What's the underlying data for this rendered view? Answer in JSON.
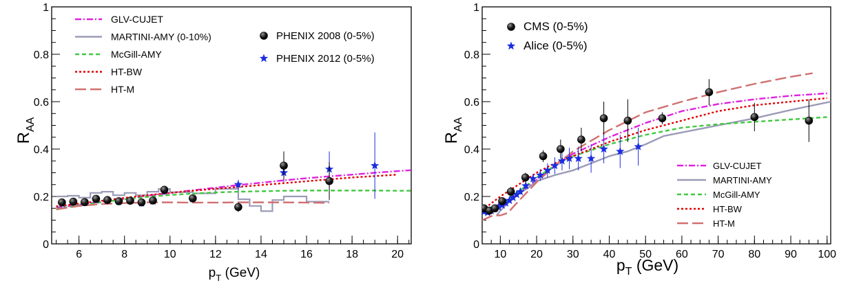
{
  "chart_data": [
    {
      "type": "line",
      "xlabel_main": "p",
      "xlabel_sub": "T",
      "xlabel_unit": " (GeV)",
      "ylabel_main": "R",
      "ylabel_sub": "AA",
      "xlim": [
        4.8,
        20.6
      ],
      "ylim": [
        0,
        1
      ],
      "xticks": [
        6,
        8,
        10,
        12,
        14,
        16,
        18,
        20
      ],
      "yticks": [
        0,
        0.2,
        0.4,
        0.6,
        0.8,
        1
      ],
      "ytick_labels": [
        "0",
        "0.2",
        "0.4",
        "0.6",
        "0.8",
        "1"
      ],
      "legend_position": "top-left",
      "curves": [
        {
          "name": "GLV-CUJET",
          "color": "#e020e0",
          "dash": "9,3,2,3",
          "x": [
            5,
            6,
            7,
            8,
            9,
            10,
            11,
            12,
            13,
            14,
            15,
            16,
            17,
            18,
            19,
            20,
            20.6
          ],
          "y": [
            0.152,
            0.165,
            0.178,
            0.19,
            0.203,
            0.215,
            0.226,
            0.237,
            0.248,
            0.258,
            0.268,
            0.277,
            0.285,
            0.292,
            0.3,
            0.307,
            0.311
          ]
        },
        {
          "name": "MARTINI-AMY (0-10%)",
          "color": "#9b9bb8",
          "step": true,
          "edges": [
            5,
            5.5,
            6,
            6.5,
            7,
            7.5,
            8,
            8.5,
            9,
            9.5,
            10,
            11,
            12,
            13,
            13.5,
            14,
            14.5,
            15,
            16,
            17
          ],
          "values": [
            0.2,
            0.203,
            0.195,
            0.215,
            0.22,
            0.205,
            0.215,
            0.205,
            0.22,
            0.232,
            0.218,
            0.213,
            0.232,
            0.188,
            0.16,
            0.138,
            0.185,
            0.2,
            0.178
          ]
        },
        {
          "name": "McGill-AMY",
          "color": "#40c840",
          "dash": "6,4",
          "x": [
            5,
            6,
            7,
            8,
            9,
            10,
            11,
            12,
            13,
            14,
            15,
            16,
            17,
            18,
            19,
            20,
            20.6
          ],
          "y": [
            0.148,
            0.162,
            0.176,
            0.188,
            0.198,
            0.206,
            0.212,
            0.217,
            0.22,
            0.222,
            0.224,
            0.225,
            0.225,
            0.225,
            0.225,
            0.224,
            0.224
          ]
        },
        {
          "name": "HT-BW",
          "color": "#e00000",
          "dash": "3,3",
          "x": [
            5,
            6,
            7,
            8,
            9,
            10,
            11,
            12,
            13,
            14,
            15,
            16,
            17,
            18,
            19,
            20
          ],
          "y": [
            0.158,
            0.17,
            0.182,
            0.194,
            0.205,
            0.215,
            0.224,
            0.232,
            0.24,
            0.248,
            0.256,
            0.264,
            0.272,
            0.28,
            0.286,
            0.292
          ]
        },
        {
          "name": "HT-M",
          "color": "#d07070",
          "dash": "16,6",
          "x": [
            5,
            6,
            7,
            8,
            9,
            10,
            11,
            12,
            13,
            14,
            15,
            16,
            17
          ],
          "y": [
            0.145,
            0.16,
            0.168,
            0.172,
            0.175,
            0.175,
            0.174,
            0.174,
            0.175,
            0.175,
            0.175,
            0.174,
            0.173
          ]
        }
      ],
      "data_series": [
        {
          "name": "PHENIX 2008 (0-5%)",
          "marker": "circle",
          "x": [
            5.25,
            5.75,
            6.25,
            6.75,
            7.25,
            7.75,
            8.25,
            8.75,
            9.25,
            9.75,
            11,
            13,
            15,
            17
          ],
          "y": [
            0.175,
            0.178,
            0.176,
            0.19,
            0.185,
            0.18,
            0.182,
            0.175,
            0.183,
            0.228,
            0.192,
            0.155,
            0.33,
            0.265
          ],
          "err": [
            0.01,
            0.01,
            0.01,
            0.01,
            0.01,
            0.01,
            0.01,
            0.01,
            0.012,
            0.015,
            0.015,
            0.02,
            0.06,
            0.08
          ]
        },
        {
          "name": "PHENIX 2012 (0-5%)",
          "marker": "star",
          "x": [
            5.25,
            5.75,
            6.25,
            6.75,
            7.25,
            7.75,
            8.25,
            8.75,
            9.25,
            9.75,
            11,
            13,
            15,
            17,
            19
          ],
          "y": [
            0.17,
            0.176,
            0.174,
            0.186,
            0.183,
            0.178,
            0.182,
            0.172,
            0.18,
            0.222,
            0.19,
            0.25,
            0.3,
            0.315,
            0.33
          ],
          "err": [
            0.01,
            0.01,
            0.01,
            0.01,
            0.01,
            0.01,
            0.01,
            0.01,
            0.012,
            0.015,
            0.015,
            0.02,
            0.04,
            0.075,
            0.14
          ]
        }
      ]
    },
    {
      "type": "line",
      "xlabel_main": "p",
      "xlabel_sub": "T",
      "xlabel_unit": " (GeV)",
      "ylabel_main": "R",
      "ylabel_sub": "AA",
      "xlim": [
        5,
        101
      ],
      "ylim": [
        0,
        1
      ],
      "xticks": [
        10,
        20,
        30,
        40,
        50,
        60,
        70,
        80,
        90,
        100
      ],
      "yticks": [
        0,
        0.2,
        0.4,
        0.6,
        0.8,
        1
      ],
      "ytick_labels": [
        "0",
        "0.2",
        "0.4",
        "0.6",
        "0.8",
        "1"
      ],
      "legend_position": "bottom-right",
      "curves": [
        {
          "name": "GLV-CUJET",
          "color": "#e020e0",
          "dash": "9,3,2,3",
          "x": [
            5,
            7,
            10,
            15,
            20,
            25,
            30,
            40,
            50,
            60,
            70,
            80,
            90,
            100
          ],
          "y": [
            0.13,
            0.145,
            0.17,
            0.21,
            0.27,
            0.33,
            0.38,
            0.45,
            0.51,
            0.56,
            0.59,
            0.61,
            0.625,
            0.635
          ]
        },
        {
          "name": "MARTINI-AMY",
          "color": "#9b9bb8",
          "x": [
            9,
            10,
            12,
            15,
            18,
            20,
            25,
            30,
            35,
            40,
            45,
            50,
            55,
            60,
            70,
            80,
            90,
            101
          ],
          "y": [
            0.12,
            0.14,
            0.17,
            0.21,
            0.24,
            0.265,
            0.29,
            0.31,
            0.34,
            0.37,
            0.39,
            0.42,
            0.455,
            0.47,
            0.5,
            0.53,
            0.565,
            0.6
          ]
        },
        {
          "name": "McGill-AMY",
          "color": "#40c840",
          "dash": "6,4",
          "x": [
            6,
            8,
            10,
            15,
            20,
            25,
            30,
            40,
            50,
            60,
            70,
            80,
            90,
            100
          ],
          "y": [
            0.14,
            0.145,
            0.16,
            0.22,
            0.28,
            0.33,
            0.37,
            0.42,
            0.46,
            0.49,
            0.505,
            0.515,
            0.525,
            0.535
          ]
        },
        {
          "name": "HT-BW",
          "color": "#e00000",
          "dash": "3,3",
          "x": [
            5,
            7,
            10,
            15,
            20,
            25,
            30,
            40,
            50,
            60,
            70,
            80,
            90,
            100
          ],
          "y": [
            0.14,
            0.165,
            0.2,
            0.25,
            0.3,
            0.34,
            0.37,
            0.43,
            0.48,
            0.52,
            0.56,
            0.585,
            0.6,
            0.615
          ]
        },
        {
          "name": "HT-M",
          "color": "#d07070",
          "dash": "16,6",
          "x": [
            5,
            8,
            10,
            12,
            15,
            20,
            25,
            30,
            40,
            50,
            60,
            70,
            80,
            90,
            96
          ],
          "y": [
            0.1,
            0.12,
            0.12,
            0.13,
            0.18,
            0.26,
            0.33,
            0.39,
            0.48,
            0.555,
            0.6,
            0.64,
            0.675,
            0.705,
            0.72
          ]
        }
      ],
      "data_series": [
        {
          "name": "CMS (0-5%)",
          "marker": "circle",
          "x": [
            5.5,
            7,
            8.5,
            10.5,
            12.9,
            16.9,
            21.8,
            26.6,
            32.3,
            38.5,
            45.1,
            54.6,
            67.5,
            80,
            95
          ],
          "y": [
            0.15,
            0.14,
            0.15,
            0.18,
            0.22,
            0.28,
            0.37,
            0.4,
            0.44,
            0.53,
            0.52,
            0.53,
            0.64,
            0.535,
            0.52
          ],
          "err": [
            0.01,
            0.01,
            0.01,
            0.015,
            0.02,
            0.02,
            0.025,
            0.04,
            0.05,
            0.07,
            0.09,
            0.025,
            0.055,
            0.06,
            0.09
          ]
        },
        {
          "name": "Alice (0-5%)",
          "marker": "star",
          "x": [
            5.5,
            6.5,
            7.5,
            8.5,
            9.5,
            10.5,
            11.5,
            12.5,
            13.5,
            14.5,
            15.5,
            17,
            19,
            21,
            23,
            25,
            27,
            29,
            31.5,
            35,
            38.5,
            43,
            48
          ],
          "y": [
            0.135,
            0.132,
            0.14,
            0.148,
            0.155,
            0.163,
            0.172,
            0.183,
            0.195,
            0.208,
            0.22,
            0.245,
            0.275,
            0.29,
            0.31,
            0.33,
            0.35,
            0.36,
            0.36,
            0.36,
            0.4,
            0.39,
            0.41
          ],
          "err": [
            0.008,
            0.008,
            0.008,
            0.008,
            0.008,
            0.008,
            0.009,
            0.009,
            0.01,
            0.01,
            0.012,
            0.015,
            0.02,
            0.025,
            0.03,
            0.035,
            0.04,
            0.045,
            0.05,
            0.06,
            0.06,
            0.07,
            0.08
          ]
        }
      ]
    }
  ]
}
